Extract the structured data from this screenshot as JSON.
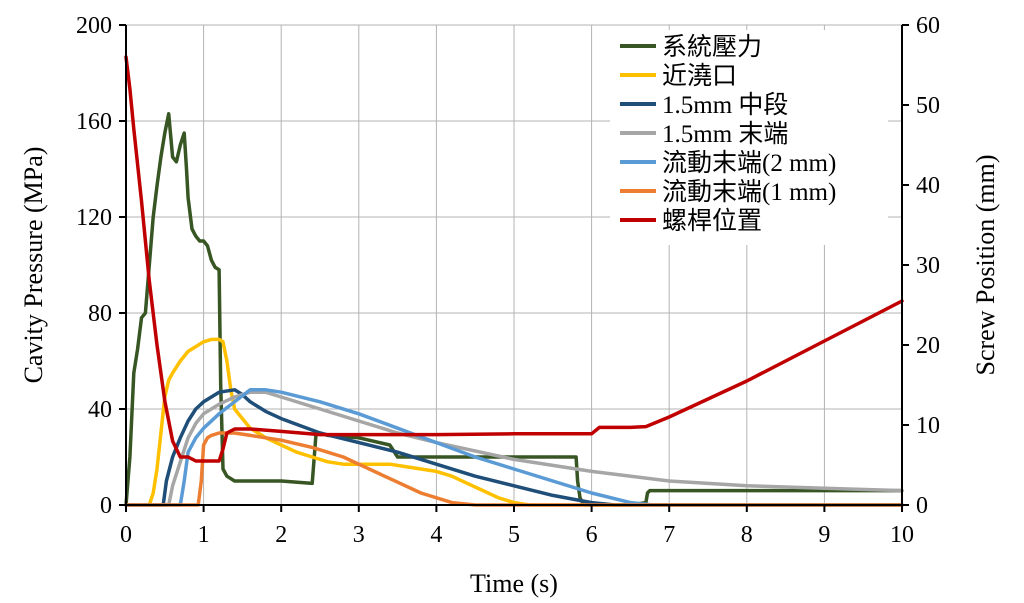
{
  "chart_data": {
    "type": "line",
    "xlabel": "Time (s)",
    "ylabel": "Cavity Pressure (MPa)",
    "y2label": "Screw Position (mm)",
    "xlim": [
      0,
      10
    ],
    "ylim": [
      0,
      200
    ],
    "y2lim": [
      0,
      60
    ],
    "xticks": [
      "0",
      "1",
      "2",
      "3",
      "4",
      "5",
      "6",
      "7",
      "8",
      "9",
      "10"
    ],
    "yticks": [
      "0",
      "40",
      "80",
      "120",
      "160",
      "200"
    ],
    "y2ticks": [
      "0",
      "10",
      "20",
      "30",
      "40",
      "50",
      "60"
    ],
    "grid": true,
    "legend_position": "top-right",
    "series": [
      {
        "name": "系統壓力",
        "axis": "left",
        "color": "#375623",
        "x": [
          0,
          0.05,
          0.1,
          0.15,
          0.2,
          0.25,
          0.3,
          0.35,
          0.4,
          0.45,
          0.5,
          0.55,
          0.6,
          0.65,
          0.7,
          0.75,
          0.78,
          0.8,
          0.85,
          0.9,
          0.95,
          1.0,
          1.05,
          1.1,
          1.15,
          1.2,
          1.22,
          1.25,
          1.3,
          1.4,
          1.6,
          2.0,
          2.4,
          2.45,
          2.5,
          2.6,
          3.0,
          3.4,
          3.5,
          4.0,
          5.0,
          5.6,
          5.8,
          5.82,
          5.85,
          5.9,
          6.0,
          6.2,
          6.5,
          6.7,
          6.72,
          6.75,
          7.0,
          8.0,
          9.0,
          10.0
        ],
        "y": [
          0,
          20,
          55,
          65,
          78,
          80,
          100,
          120,
          133,
          145,
          155,
          163,
          145,
          143,
          150,
          155,
          140,
          128,
          115,
          112,
          110,
          110,
          108,
          102,
          99,
          98,
          50,
          15,
          12,
          10,
          10,
          10,
          9,
          30,
          30,
          29,
          28,
          25,
          20,
          20,
          20,
          20,
          20,
          10,
          3,
          0,
          0,
          0,
          0,
          1,
          5,
          6,
          6,
          6,
          6,
          6
        ]
      },
      {
        "name": "近澆口",
        "axis": "left",
        "color": "#ffc000",
        "x": [
          0,
          0.3,
          0.35,
          0.4,
          0.45,
          0.5,
          0.55,
          0.6,
          0.7,
          0.8,
          0.9,
          1.0,
          1.1,
          1.2,
          1.25,
          1.3,
          1.35,
          1.4,
          1.5,
          1.6,
          1.8,
          2.0,
          2.2,
          2.4,
          2.6,
          2.8,
          3.0,
          3.2,
          3.4,
          3.6,
          3.8,
          4.0,
          4.2,
          4.4,
          4.6,
          4.8,
          5.0,
          5.2,
          5.5,
          6.0,
          7.0,
          10.0
        ],
        "y": [
          0,
          0,
          5,
          15,
          30,
          45,
          52,
          55,
          60,
          64,
          66,
          68,
          69,
          69,
          68,
          60,
          48,
          40,
          36,
          32,
          28,
          25,
          22,
          20,
          18,
          17,
          17,
          17,
          17,
          16,
          15,
          14,
          12,
          9,
          6,
          3,
          1,
          0,
          0,
          0,
          0,
          0
        ]
      },
      {
        "name": "1.5mm 中段",
        "axis": "left",
        "color": "#1f4e79",
        "x": [
          0,
          0.48,
          0.52,
          0.6,
          0.7,
          0.8,
          0.9,
          1.0,
          1.2,
          1.4,
          1.5,
          1.6,
          1.8,
          2.0,
          2.5,
          3.0,
          3.5,
          4.0,
          4.5,
          5.0,
          5.5,
          6.0,
          6.3,
          6.5,
          10.0
        ],
        "y": [
          0,
          0,
          10,
          20,
          28,
          35,
          40,
          43,
          47,
          48,
          46,
          43,
          39,
          36,
          30,
          26,
          22,
          17,
          12,
          8,
          4,
          1,
          0,
          0,
          0
        ]
      },
      {
        "name": "1.5mm 末端",
        "axis": "left",
        "color": "#a6a6a6",
        "x": [
          0,
          0.55,
          0.6,
          0.7,
          0.8,
          0.9,
          1.0,
          1.2,
          1.4,
          1.6,
          1.8,
          2.0,
          2.5,
          3.0,
          3.5,
          4.0,
          5.0,
          6.0,
          7.0,
          8.0,
          9.0,
          10.0
        ],
        "y": [
          0,
          0,
          8,
          18,
          28,
          34,
          38,
          42,
          45,
          47,
          47,
          45,
          40,
          35,
          30,
          26,
          19,
          14,
          10,
          8,
          7,
          6
        ]
      },
      {
        "name": "流動末端(2 mm)",
        "axis": "left",
        "color": "#5b9bd5",
        "x": [
          0,
          0.7,
          0.75,
          0.8,
          0.9,
          1.0,
          1.2,
          1.4,
          1.6,
          1.8,
          2.0,
          2.5,
          3.0,
          3.5,
          4.0,
          4.5,
          5.0,
          5.5,
          6.0,
          6.5,
          6.8,
          7.0,
          10.0
        ],
        "y": [
          0,
          0,
          10,
          22,
          28,
          32,
          38,
          43,
          48,
          48,
          47,
          43,
          38,
          32,
          26,
          20,
          15,
          10,
          5,
          1,
          0,
          0,
          0
        ]
      },
      {
        "name": "流動末端(1 mm)",
        "axis": "left",
        "color": "#ed7d31",
        "x": [
          0,
          0.93,
          0.97,
          1.0,
          1.05,
          1.1,
          1.2,
          1.4,
          1.6,
          2.0,
          2.4,
          2.8,
          3.0,
          3.4,
          3.8,
          4.2,
          4.5,
          5.0,
          10.0
        ],
        "y": [
          0,
          0,
          10,
          25,
          28,
          29,
          30,
          30,
          29,
          27,
          24,
          20,
          17,
          11,
          5,
          1,
          0,
          0,
          0
        ]
      },
      {
        "name": "螺桿位置",
        "axis": "right",
        "color": "#c00000",
        "x": [
          0,
          0.05,
          0.1,
          0.2,
          0.3,
          0.4,
          0.5,
          0.6,
          0.7,
          0.8,
          0.9,
          1.0,
          1.2,
          1.25,
          1.3,
          1.4,
          1.6,
          2.0,
          2.5,
          3.0,
          4.0,
          5.0,
          6.0,
          6.1,
          6.2,
          6.5,
          6.7,
          7.0,
          8.0,
          9.0,
          10.0
        ],
        "y": [
          56,
          52,
          47,
          38,
          28,
          20,
          13,
          8,
          6,
          6,
          5.5,
          5.5,
          5.5,
          7,
          9,
          9.5,
          9.5,
          9.2,
          8.8,
          8.8,
          8.8,
          8.9,
          8.9,
          9.7,
          9.7,
          9.7,
          9.8,
          11,
          15.5,
          20.5,
          25.5
        ]
      }
    ]
  }
}
